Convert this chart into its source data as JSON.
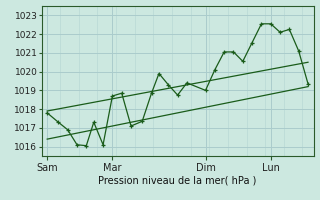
{
  "bg_color": "#cce8e0",
  "grid_color": "#aacccc",
  "line_color": "#1a5c1a",
  "ylabel": "Pression niveau de la mer( hPa )",
  "ylim": [
    1015.5,
    1023.5
  ],
  "yticks": [
    1016,
    1017,
    1018,
    1019,
    1020,
    1021,
    1022,
    1023
  ],
  "xtick_labels": [
    "Sam",
    "Mar",
    "Dim",
    "Lun"
  ],
  "xtick_positions": [
    0,
    3.5,
    8.5,
    12
  ],
  "x_total_min": -0.3,
  "x_total_max": 14.3,
  "upper_line": [
    [
      0,
      1017.9
    ],
    [
      14,
      1020.5
    ]
  ],
  "lower_line": [
    [
      0,
      1016.4
    ],
    [
      14,
      1019.2
    ]
  ],
  "main_line": [
    [
      0.0,
      1017.8
    ],
    [
      0.6,
      1017.3
    ],
    [
      1.1,
      1016.9
    ],
    [
      1.6,
      1016.1
    ],
    [
      2.1,
      1016.05
    ],
    [
      2.5,
      1017.3
    ],
    [
      3.0,
      1016.1
    ],
    [
      3.5,
      1018.7
    ],
    [
      4.0,
      1018.85
    ],
    [
      4.5,
      1017.1
    ],
    [
      5.1,
      1017.35
    ],
    [
      5.6,
      1018.85
    ],
    [
      6.0,
      1019.9
    ],
    [
      6.5,
      1019.3
    ],
    [
      7.0,
      1018.75
    ],
    [
      7.5,
      1019.4
    ],
    [
      8.5,
      1019.0
    ],
    [
      9.0,
      1020.1
    ],
    [
      9.5,
      1021.05
    ],
    [
      10.0,
      1021.05
    ],
    [
      10.5,
      1020.55
    ],
    [
      11.0,
      1021.55
    ],
    [
      11.5,
      1022.55
    ],
    [
      12.0,
      1022.55
    ],
    [
      12.5,
      1022.1
    ],
    [
      13.0,
      1022.25
    ],
    [
      13.5,
      1021.1
    ],
    [
      14.0,
      1019.35
    ]
  ]
}
